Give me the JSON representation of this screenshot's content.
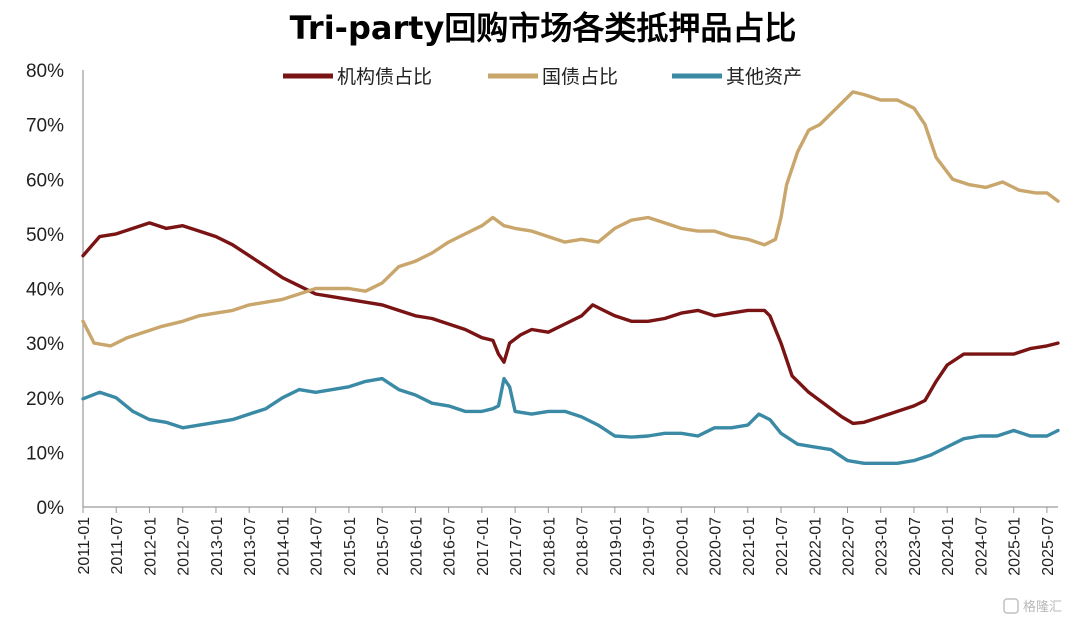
{
  "chart_data": {
    "type": "line",
    "title": "Tri-party回购市场各类抵押品占比",
    "ylim": [
      0,
      80
    ],
    "yticks": [
      "0%",
      "10%",
      "20%",
      "30%",
      "40%",
      "50%",
      "60%",
      "70%",
      "80%"
    ],
    "xlim": [
      "2011-01",
      "2025-09"
    ],
    "xticks": [
      "2011-01",
      "2011-07",
      "2012-01",
      "2012-07",
      "2013-01",
      "2013-07",
      "2014-01",
      "2014-07",
      "2015-01",
      "2015-07",
      "2016-01",
      "2016-07",
      "2017-01",
      "2017-07",
      "2018-01",
      "2018-07",
      "2019-01",
      "2019-07",
      "2020-01",
      "2020-07",
      "2021-01",
      "2021-07",
      "2022-01",
      "2022-07",
      "2023-01",
      "2023-07",
      "2024-01",
      "2024-07",
      "2025-01",
      "2025-07"
    ],
    "legend_position": "top",
    "grid": false,
    "series": [
      {
        "name": "机构债占比",
        "color": "#7a1414",
        "points": [
          [
            "2011-01",
            46
          ],
          [
            "2011-04",
            49.5
          ],
          [
            "2011-07",
            50
          ],
          [
            "2011-10",
            51
          ],
          [
            "2012-01",
            52
          ],
          [
            "2012-04",
            51
          ],
          [
            "2012-07",
            51.5
          ],
          [
            "2012-10",
            50.5
          ],
          [
            "2013-01",
            49.5
          ],
          [
            "2013-04",
            48
          ],
          [
            "2013-07",
            46
          ],
          [
            "2013-10",
            44
          ],
          [
            "2014-01",
            42
          ],
          [
            "2014-04",
            40.5
          ],
          [
            "2014-07",
            39
          ],
          [
            "2014-10",
            38.5
          ],
          [
            "2015-01",
            38
          ],
          [
            "2015-04",
            37.5
          ],
          [
            "2015-07",
            37
          ],
          [
            "2015-10",
            36
          ],
          [
            "2016-01",
            35
          ],
          [
            "2016-04",
            34.5
          ],
          [
            "2016-07",
            33.5
          ],
          [
            "2016-10",
            32.5
          ],
          [
            "2017-01",
            31
          ],
          [
            "2017-03",
            30.5
          ],
          [
            "2017-04",
            28
          ],
          [
            "2017-05",
            26.5
          ],
          [
            "2017-06",
            30
          ],
          [
            "2017-08",
            31.5
          ],
          [
            "2017-10",
            32.5
          ],
          [
            "2018-01",
            32
          ],
          [
            "2018-04",
            33.5
          ],
          [
            "2018-07",
            35
          ],
          [
            "2018-09",
            37
          ],
          [
            "2018-11",
            36
          ],
          [
            "2019-01",
            35
          ],
          [
            "2019-04",
            34
          ],
          [
            "2019-07",
            34
          ],
          [
            "2019-10",
            34.5
          ],
          [
            "2020-01",
            35.5
          ],
          [
            "2020-04",
            36
          ],
          [
            "2020-07",
            35
          ],
          [
            "2020-10",
            35.5
          ],
          [
            "2021-01",
            36
          ],
          [
            "2021-04",
            36
          ],
          [
            "2021-05",
            35
          ],
          [
            "2021-07",
            30
          ],
          [
            "2021-09",
            24
          ],
          [
            "2021-12",
            21
          ],
          [
            "2022-02",
            19.5
          ],
          [
            "2022-04",
            18
          ],
          [
            "2022-06",
            16.5
          ],
          [
            "2022-08",
            15.3
          ],
          [
            "2022-10",
            15.5
          ],
          [
            "2023-01",
            16.5
          ],
          [
            "2023-04",
            17.5
          ],
          [
            "2023-07",
            18.5
          ],
          [
            "2023-09",
            19.5
          ],
          [
            "2023-11",
            23
          ],
          [
            "2024-01",
            26
          ],
          [
            "2024-04",
            28
          ],
          [
            "2024-07",
            28
          ],
          [
            "2024-10",
            28
          ],
          [
            "2025-01",
            28
          ],
          [
            "2025-04",
            29
          ],
          [
            "2025-07",
            29.5
          ],
          [
            "2025-09",
            30
          ]
        ]
      },
      {
        "name": "国债占比",
        "color": "#c9a66b",
        "points": [
          [
            "2011-01",
            34
          ],
          [
            "2011-03",
            30
          ],
          [
            "2011-06",
            29.5
          ],
          [
            "2011-09",
            31
          ],
          [
            "2011-12",
            32
          ],
          [
            "2012-03",
            33
          ],
          [
            "2012-07",
            34
          ],
          [
            "2012-10",
            35
          ],
          [
            "2013-01",
            35.5
          ],
          [
            "2013-04",
            36
          ],
          [
            "2013-07",
            37
          ],
          [
            "2013-10",
            37.5
          ],
          [
            "2014-01",
            38
          ],
          [
            "2014-04",
            39
          ],
          [
            "2014-07",
            40
          ],
          [
            "2014-10",
            40
          ],
          [
            "2015-01",
            40
          ],
          [
            "2015-04",
            39.5
          ],
          [
            "2015-07",
            41
          ],
          [
            "2015-10",
            44
          ],
          [
            "2016-01",
            45
          ],
          [
            "2016-04",
            46.5
          ],
          [
            "2016-07",
            48.5
          ],
          [
            "2016-10",
            50
          ],
          [
            "2017-01",
            51.5
          ],
          [
            "2017-03",
            53
          ],
          [
            "2017-05",
            51.5
          ],
          [
            "2017-07",
            51
          ],
          [
            "2017-10",
            50.5
          ],
          [
            "2018-01",
            49.5
          ],
          [
            "2018-04",
            48.5
          ],
          [
            "2018-07",
            49
          ],
          [
            "2018-10",
            48.5
          ],
          [
            "2019-01",
            51
          ],
          [
            "2019-04",
            52.5
          ],
          [
            "2019-07",
            53
          ],
          [
            "2019-10",
            52
          ],
          [
            "2020-01",
            51
          ],
          [
            "2020-04",
            50.5
          ],
          [
            "2020-07",
            50.5
          ],
          [
            "2020-10",
            49.5
          ],
          [
            "2021-01",
            49
          ],
          [
            "2021-04",
            48
          ],
          [
            "2021-06",
            49
          ],
          [
            "2021-07",
            53
          ],
          [
            "2021-08",
            59
          ],
          [
            "2021-10",
            65
          ],
          [
            "2021-12",
            69
          ],
          [
            "2022-02",
            70
          ],
          [
            "2022-04",
            72
          ],
          [
            "2022-06",
            74
          ],
          [
            "2022-08",
            76
          ],
          [
            "2022-10",
            75.5
          ],
          [
            "2023-01",
            74.5
          ],
          [
            "2023-04",
            74.5
          ],
          [
            "2023-07",
            73
          ],
          [
            "2023-09",
            70
          ],
          [
            "2023-11",
            64
          ],
          [
            "2024-02",
            60
          ],
          [
            "2024-05",
            59
          ],
          [
            "2024-08",
            58.5
          ],
          [
            "2024-11",
            59.5
          ],
          [
            "2025-02",
            58
          ],
          [
            "2025-05",
            57.5
          ],
          [
            "2025-07",
            57.5
          ],
          [
            "2025-09",
            56
          ]
        ]
      },
      {
        "name": "其他资产",
        "color": "#3a8aa6",
        "points": [
          [
            "2011-01",
            19.8
          ],
          [
            "2011-04",
            21
          ],
          [
            "2011-07",
            20
          ],
          [
            "2011-10",
            17.5
          ],
          [
            "2012-01",
            16
          ],
          [
            "2012-04",
            15.5
          ],
          [
            "2012-07",
            14.5
          ],
          [
            "2012-10",
            15
          ],
          [
            "2013-01",
            15.5
          ],
          [
            "2013-04",
            16
          ],
          [
            "2013-07",
            17
          ],
          [
            "2013-10",
            18
          ],
          [
            "2014-01",
            20
          ],
          [
            "2014-04",
            21.5
          ],
          [
            "2014-07",
            21
          ],
          [
            "2014-10",
            21.5
          ],
          [
            "2015-01",
            22
          ],
          [
            "2015-04",
            23
          ],
          [
            "2015-07",
            23.5
          ],
          [
            "2015-10",
            21.5
          ],
          [
            "2016-01",
            20.5
          ],
          [
            "2016-04",
            19
          ],
          [
            "2016-07",
            18.5
          ],
          [
            "2016-10",
            17.5
          ],
          [
            "2017-01",
            17.5
          ],
          [
            "2017-03",
            18
          ],
          [
            "2017-04",
            18.5
          ],
          [
            "2017-05",
            23.5
          ],
          [
            "2017-06",
            22
          ],
          [
            "2017-07",
            17.5
          ],
          [
            "2017-10",
            17
          ],
          [
            "2018-01",
            17.5
          ],
          [
            "2018-04",
            17.5
          ],
          [
            "2018-07",
            16.5
          ],
          [
            "2018-10",
            15
          ],
          [
            "2019-01",
            13
          ],
          [
            "2019-04",
            12.8
          ],
          [
            "2019-07",
            13
          ],
          [
            "2019-10",
            13.5
          ],
          [
            "2020-01",
            13.5
          ],
          [
            "2020-04",
            13
          ],
          [
            "2020-07",
            14.5
          ],
          [
            "2020-10",
            14.5
          ],
          [
            "2021-01",
            15
          ],
          [
            "2021-03",
            17
          ],
          [
            "2021-05",
            16
          ],
          [
            "2021-07",
            13.5
          ],
          [
            "2021-10",
            11.5
          ],
          [
            "2022-01",
            11
          ],
          [
            "2022-04",
            10.5
          ],
          [
            "2022-07",
            8.5
          ],
          [
            "2022-10",
            8
          ],
          [
            "2023-01",
            8
          ],
          [
            "2023-04",
            8
          ],
          [
            "2023-07",
            8.5
          ],
          [
            "2023-10",
            9.5
          ],
          [
            "2024-01",
            11
          ],
          [
            "2024-04",
            12.5
          ],
          [
            "2024-07",
            13
          ],
          [
            "2024-10",
            13
          ],
          [
            "2025-01",
            14
          ],
          [
            "2025-04",
            13
          ],
          [
            "2025-07",
            13
          ],
          [
            "2025-09",
            14
          ]
        ]
      }
    ]
  }
}
